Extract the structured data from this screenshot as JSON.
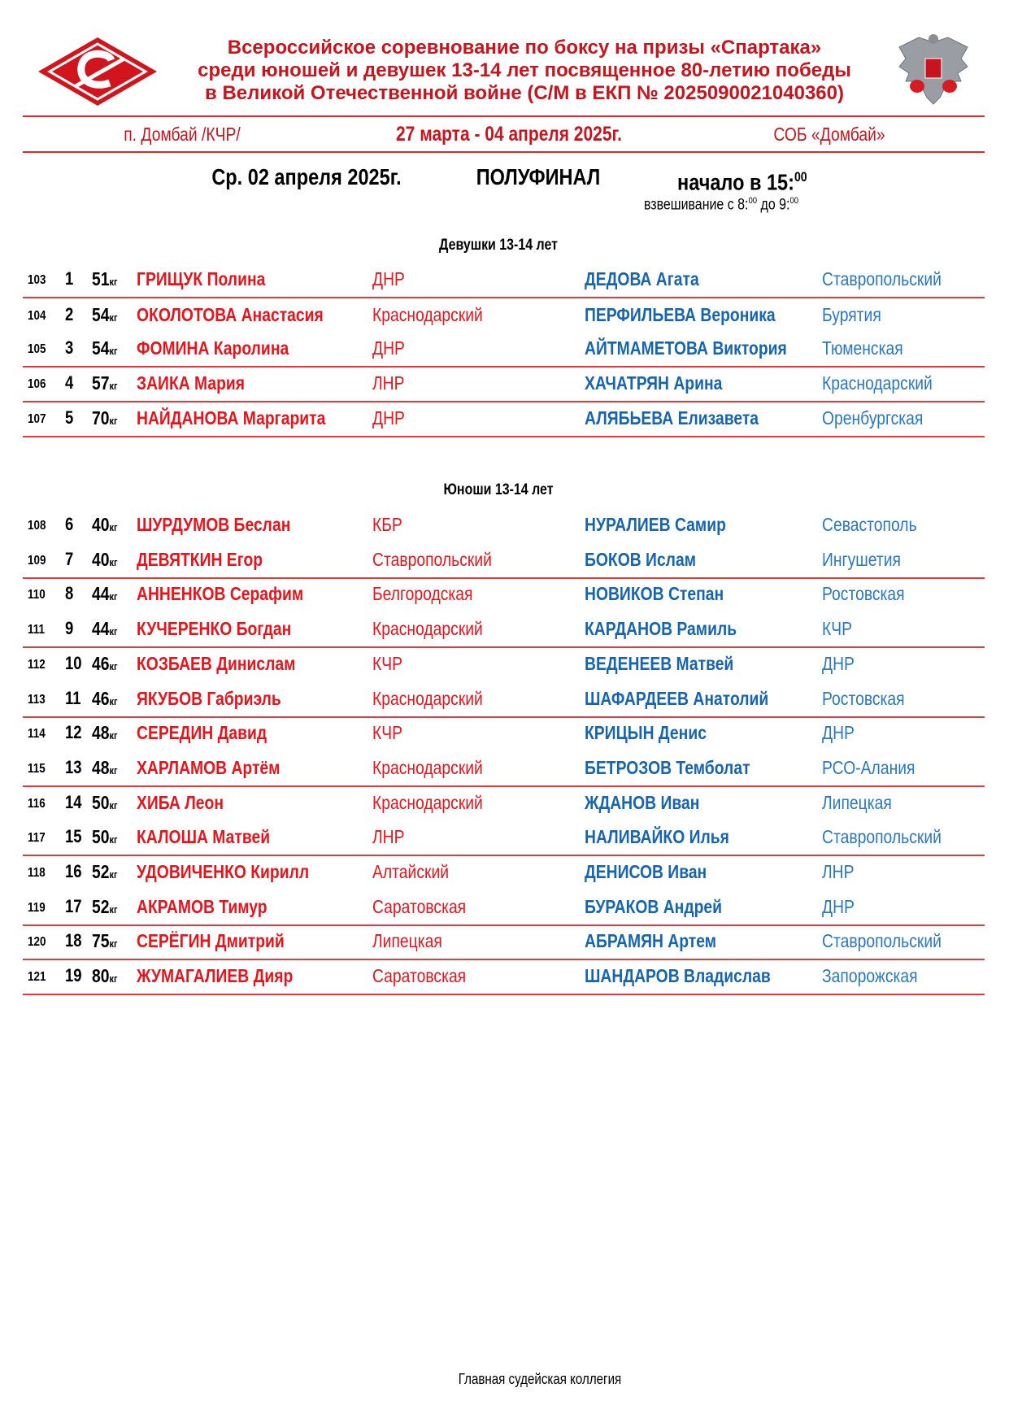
{
  "header": {
    "title_lines": [
      "Всероссийское соревнование по боксу на призы «Спартака»",
      "среди юношей и девушек 13-14 лет посвященное 80-летию победы",
      "в Великой Отечественной войне (С/М в ЕКП № 2025090021040360)"
    ],
    "location": "п. Домбай /КЧР/",
    "dates": "27 марта - 04 апреля 2025г.",
    "venue": "СОБ «Домбай»",
    "day": "Ср. 02 апреля 2025г.",
    "stage": "ПОЛУФИНАЛ",
    "start_label": "начало в 15:",
    "start_minutes": "00",
    "weigh_label": "взвешивание с 8:",
    "weigh_from_min": "00",
    "weigh_to": " до 9:",
    "weigh_to_min": "00"
  },
  "colors": {
    "red_corner": "#e8141b",
    "blue_corner": "#1565b0",
    "title": "#c8141c"
  },
  "unit": "кг",
  "girls": {
    "title": "Девушки 13-14 лет",
    "bouts": [
      {
        "bout": "103",
        "n": "1",
        "w": "51",
        "red": "ГРИЩУК Полина",
        "red_reg": "ДНР",
        "blue": "ДЕДОВА Агата",
        "blue_reg": "Ставропольский"
      },
      {
        "bout": "104",
        "n": "2",
        "w": "54",
        "red": "ОКОЛОТОВА Анастасия",
        "red_reg": "Краснодарский",
        "blue": "ПЕРФИЛЬЕВА Вероника",
        "blue_reg": "Бурятия"
      },
      {
        "bout": "105",
        "n": "3",
        "w": "54",
        "red": "ФОМИНА Каролина",
        "red_reg": "ДНР",
        "blue": "АЙТМАМЕТОВА Виктория",
        "blue_reg": "Тюменская"
      },
      {
        "bout": "106",
        "n": "4",
        "w": "57",
        "red": "ЗАИКА Мария",
        "red_reg": "ЛНР",
        "blue": "ХАЧАТРЯН Арина",
        "blue_reg": "Краснодарский"
      },
      {
        "bout": "107",
        "n": "5",
        "w": "70",
        "red": "НАЙДАНОВА Маргарита",
        "red_reg": "ДНР",
        "blue": "АЛЯБЬЕВА Елизавета",
        "blue_reg": "Оренбургская"
      }
    ]
  },
  "boys": {
    "title": "Юноши 13-14 лет",
    "bouts": [
      {
        "bout": "108",
        "n": "6",
        "w": "40",
        "red": "ШУРДУМОВ Беслан",
        "red_reg": "КБР",
        "blue": "НУРАЛИЕВ Самир",
        "blue_reg": "Севастополь"
      },
      {
        "bout": "109",
        "n": "7",
        "w": "40",
        "red": "ДЕВЯТКИН Егор",
        "red_reg": "Ставропольский",
        "blue": "БОКОВ Ислам",
        "blue_reg": "Ингушетия"
      },
      {
        "bout": "110",
        "n": "8",
        "w": "44",
        "red": "АННЕНКОВ Серафим",
        "red_reg": "Белгородская",
        "blue": "НОВИКОВ Степан",
        "blue_reg": "Ростовская"
      },
      {
        "bout": "111",
        "n": "9",
        "w": "44",
        "red": "КУЧЕРЕНКО Богдан",
        "red_reg": "Краснодарский",
        "blue": "КАРДАНОВ Рамиль",
        "blue_reg": "КЧР"
      },
      {
        "bout": "112",
        "n": "10",
        "w": "46",
        "red": "КОЗБАЕВ Динислам",
        "red_reg": "КЧР",
        "blue": "ВЕДЕНЕЕВ Матвей",
        "blue_reg": "ДНР"
      },
      {
        "bout": "113",
        "n": "11",
        "w": "46",
        "red": "ЯКУБОВ Габриэль",
        "red_reg": "Краснодарский",
        "blue": "ШАФАРДЕЕВ Анатолий",
        "blue_reg": "Ростовская"
      },
      {
        "bout": "114",
        "n": "12",
        "w": "48",
        "red": "СЕРЕДИН Давид",
        "red_reg": "КЧР",
        "blue": "КРИЦЫН Денис",
        "blue_reg": "ДНР"
      },
      {
        "bout": "115",
        "n": "13",
        "w": "48",
        "red": "ХАРЛАМОВ Артём",
        "red_reg": "Краснодарский",
        "blue": "БЕТРОЗОВ Темболат",
        "blue_reg": "РСО-Алания"
      },
      {
        "bout": "116",
        "n": "14",
        "w": "50",
        "red": "ХИБА Леон",
        "red_reg": "Краснодарский",
        "blue": "ЖДАНОВ Иван",
        "blue_reg": "Липецкая"
      },
      {
        "bout": "117",
        "n": "15",
        "w": "50",
        "red": "КАЛОША Матвей",
        "red_reg": "ЛНР",
        "blue": "НАЛИВАЙКО Илья",
        "blue_reg": "Ставропольский"
      },
      {
        "bout": "118",
        "n": "16",
        "w": "52",
        "red": "УДОВИЧЕНКО Кирилл",
        "red_reg": "Алтайский",
        "blue": "ДЕНИСОВ Иван",
        "blue_reg": "ЛНР"
      },
      {
        "bout": "119",
        "n": "17",
        "w": "52",
        "red": "АКРАМОВ Тимур",
        "red_reg": "Саратовская",
        "blue": "БУРАКОВ Андрей",
        "blue_reg": "ДНР"
      },
      {
        "bout": "120",
        "n": "18",
        "w": "75",
        "red": "СЕРЁГИН Дмитрий",
        "red_reg": "Липецкая",
        "blue": "АБРАМЯН Артем",
        "blue_reg": "Ставропольский"
      },
      {
        "bout": "121",
        "n": "19",
        "w": "80",
        "red": "ЖУМАГАЛИЕВ Дияр",
        "red_reg": "Саратовская",
        "blue": "ШАНДАРОВ Владислав",
        "blue_reg": "Запорожская"
      }
    ]
  },
  "footer": "Главная судейская коллегия",
  "logos": {
    "left": "Спартак",
    "right": "emblem"
  }
}
